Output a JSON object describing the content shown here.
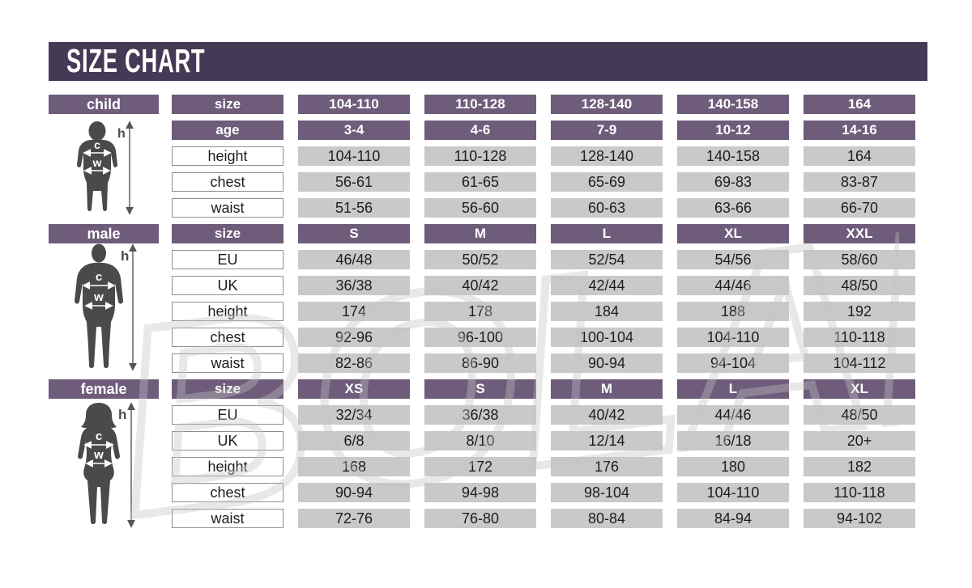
{
  "title": "SIZE CHART",
  "watermark_text": "BOLAND",
  "measure_letters": {
    "height": "h",
    "chest": "c",
    "waist": "w"
  },
  "colors": {
    "title_bar": "#453a55",
    "header_purple": "#6e5c7a",
    "cell_gray": "#c9c9c9",
    "silhouette_gray": "#4a4a4a"
  },
  "sections": [
    {
      "name": "child",
      "rows": [
        {
          "label": "size",
          "type": "header",
          "values": [
            "104-110",
            "110-128",
            "128-140",
            "140-158",
            "164"
          ]
        },
        {
          "label": "age",
          "type": "header",
          "values": [
            "3-4",
            "4-6",
            "7-9",
            "10-12",
            "14-16"
          ]
        },
        {
          "label": "height",
          "type": "data",
          "values": [
            "104-110",
            "110-128",
            "128-140",
            "140-158",
            "164"
          ]
        },
        {
          "label": "chest",
          "type": "data",
          "values": [
            "56-61",
            "61-65",
            "65-69",
            "69-83",
            "83-87"
          ]
        },
        {
          "label": "waist",
          "type": "data",
          "values": [
            "51-56",
            "56-60",
            "60-63",
            "63-66",
            "66-70"
          ]
        }
      ]
    },
    {
      "name": "male",
      "rows": [
        {
          "label": "size",
          "type": "header",
          "values": [
            "S",
            "M",
            "L",
            "XL",
            "XXL"
          ]
        },
        {
          "label": "EU",
          "type": "data",
          "values": [
            "46/48",
            "50/52",
            "52/54",
            "54/56",
            "58/60"
          ]
        },
        {
          "label": "UK",
          "type": "data",
          "values": [
            "36/38",
            "40/42",
            "42/44",
            "44/46",
            "48/50"
          ]
        },
        {
          "label": "height",
          "type": "data",
          "values": [
            "174",
            "178",
            "184",
            "188",
            "192"
          ]
        },
        {
          "label": "chest",
          "type": "data",
          "values": [
            "92-96",
            "96-100",
            "100-104",
            "104-110",
            "110-118"
          ]
        },
        {
          "label": "waist",
          "type": "data",
          "values": [
            "82-86",
            "86-90",
            "90-94",
            "94-104",
            "104-112"
          ]
        }
      ]
    },
    {
      "name": "female",
      "rows": [
        {
          "label": "size",
          "type": "header",
          "values": [
            "XS",
            "S",
            "M",
            "L",
            "XL"
          ]
        },
        {
          "label": "EU",
          "type": "data",
          "values": [
            "32/34",
            "36/38",
            "40/42",
            "44/46",
            "48/50"
          ]
        },
        {
          "label": "UK",
          "type": "data",
          "values": [
            "6/8",
            "8/10",
            "12/14",
            "16/18",
            "20+"
          ]
        },
        {
          "label": "height",
          "type": "data",
          "values": [
            "168",
            "172",
            "176",
            "180",
            "182"
          ]
        },
        {
          "label": "chest",
          "type": "data",
          "values": [
            "90-94",
            "94-98",
            "98-104",
            "104-110",
            "110-118"
          ]
        },
        {
          "label": "waist",
          "type": "data",
          "values": [
            "72-76",
            "76-80",
            "80-84",
            "84-94",
            "94-102"
          ]
        }
      ]
    }
  ]
}
